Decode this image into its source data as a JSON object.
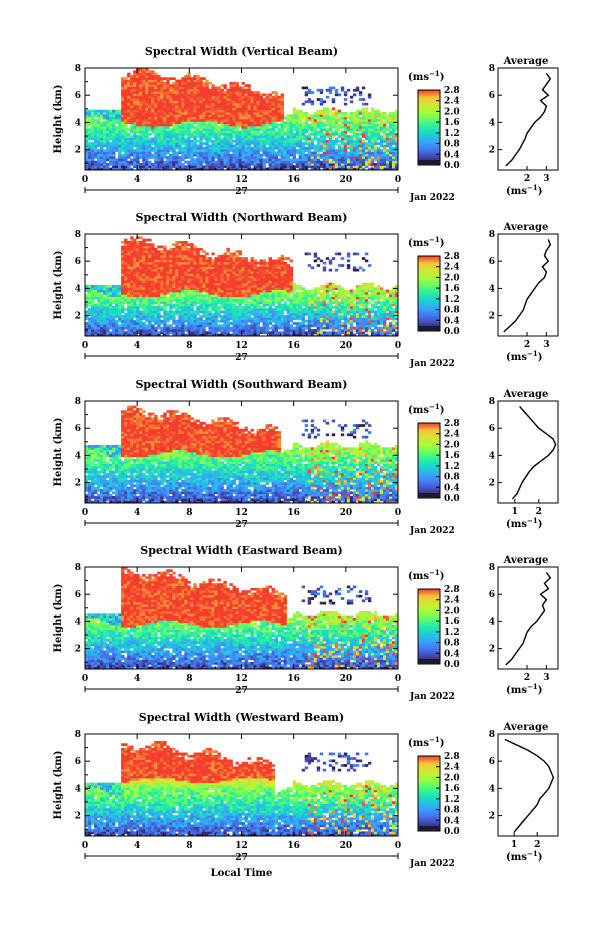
{
  "chart_data": {
    "type": "heatmap",
    "panels": [
      {
        "title": "Spectral Width (Vertical Beam)",
        "ylabel": "Height (km)",
        "ylim": [
          0.5,
          8
        ],
        "yticks": [
          2,
          4,
          6,
          8
        ],
        "xlim": [
          0,
          24
        ],
        "xticks": [
          "0",
          "4",
          "8",
          "12",
          "16",
          "20",
          "0"
        ],
        "day_label": "27",
        "date_label": "Jan 2022",
        "colorbar": {
          "unit": "(ms",
          "unit_exp": "−1",
          "unit_close": ")",
          "ticks": [
            "0.0",
            "0.4",
            "0.8",
            "1.2",
            "1.6",
            "2.0",
            "2.4",
            "2.8"
          ]
        },
        "average": {
          "title": "Average",
          "xlabel": "(ms",
          "xlabel_exp": "−1",
          "xlabel_close": ")",
          "xticks": [
            "2",
            "3"
          ],
          "xlim": [
            0.5,
            3.6
          ],
          "yticks": [
            "2",
            "4",
            "6",
            "8"
          ]
        },
        "field": {
          "high_top": 7.8,
          "high_bottom": 3.9,
          "high_end": 15.2,
          "blue_top": 4.3,
          "red_bands": [
            4.8,
            5.3
          ]
        },
        "profile": {
          "heights": [
            0.8,
            1.2,
            1.6,
            2.0,
            2.4,
            2.8,
            3.2,
            3.6,
            4.0,
            4.4,
            4.8,
            5.2,
            5.6,
            6.0,
            6.4,
            6.8,
            7.2,
            7.6
          ],
          "values": [
            0.9,
            1.2,
            1.4,
            1.6,
            1.75,
            1.9,
            2.0,
            2.2,
            2.4,
            2.7,
            2.9,
            3.0,
            2.7,
            3.1,
            2.8,
            3.0,
            3.2,
            3.0
          ]
        }
      },
      {
        "title": "Spectral Width (Northward Beam)",
        "ylabel": "Height (km)",
        "ylim": [
          0.5,
          8
        ],
        "yticks": [
          2,
          4,
          6,
          8
        ],
        "xlim": [
          0,
          24
        ],
        "xticks": [
          "0",
          "4",
          "8",
          "12",
          "16",
          "20",
          "0"
        ],
        "day_label": "27",
        "date_label": "Jan 2022",
        "colorbar": {
          "unit": "(ms",
          "unit_exp": "−1",
          "unit_close": ")",
          "ticks": [
            "0.0",
            "0.4",
            "0.8",
            "1.2",
            "1.6",
            "2.0",
            "2.4",
            "2.8"
          ]
        },
        "average": {
          "title": "Average",
          "xlabel": "(ms",
          "xlabel_exp": "−1",
          "xlabel_close": ")",
          "xticks": [
            "2",
            "3"
          ],
          "xlim": [
            0.5,
            3.6
          ],
          "yticks": [
            "2",
            "4",
            "6",
            "8"
          ]
        },
        "field": {
          "high_top": 7.6,
          "high_bottom": 3.6,
          "high_end": 16.0,
          "blue_top": 3.6,
          "red_bands": [
            4.6,
            5.2
          ]
        },
        "profile": {
          "heights": [
            0.8,
            1.2,
            1.6,
            2.0,
            2.4,
            2.8,
            3.2,
            3.6,
            4.0,
            4.4,
            4.8,
            5.2,
            5.6,
            6.0,
            6.4,
            6.8,
            7.2,
            7.6
          ],
          "values": [
            0.8,
            1.1,
            1.4,
            1.6,
            1.8,
            1.9,
            2.0,
            2.2,
            2.4,
            2.6,
            2.9,
            3.0,
            2.8,
            3.1,
            2.9,
            3.0,
            3.2,
            3.1
          ]
        }
      },
      {
        "title": "Spectral Width (Southward Beam)",
        "ylabel": "Height (km)",
        "ylim": [
          0.5,
          8
        ],
        "yticks": [
          2,
          4,
          6,
          8
        ],
        "xlim": [
          0,
          24
        ],
        "xticks": [
          "0",
          "4",
          "8",
          "12",
          "16",
          "20",
          "0"
        ],
        "day_label": "27",
        "date_label": "Jan 2022",
        "colorbar": {
          "unit": "(ms",
          "unit_exp": "−1",
          "unit_close": ")",
          "ticks": [
            "0.0",
            "0.4",
            "0.8",
            "1.2",
            "1.6",
            "2.0",
            "2.4",
            "2.8"
          ]
        },
        "average": {
          "title": "Average",
          "xlabel": "(ms",
          "xlabel_exp": "−1",
          "xlabel_close": ")",
          "xticks": [
            "1",
            "2"
          ],
          "xlim": [
            0.3,
            2.8
          ],
          "yticks": [
            "2",
            "4",
            "6",
            "8"
          ]
        },
        "field": {
          "high_top": 7.4,
          "high_bottom": 4.1,
          "high_end": 15.0,
          "blue_top": 4.2,
          "red_bands": [
            4.9,
            5.4
          ]
        },
        "profile": {
          "heights": [
            0.8,
            1.2,
            1.6,
            2.0,
            2.4,
            2.8,
            3.2,
            3.6,
            4.0,
            4.4,
            4.8,
            5.2,
            5.6,
            6.0,
            6.4,
            6.8,
            7.2,
            7.6
          ],
          "values": [
            0.9,
            1.1,
            1.2,
            1.3,
            1.45,
            1.6,
            1.8,
            2.1,
            2.4,
            2.6,
            2.7,
            2.6,
            2.3,
            2.0,
            1.8,
            1.6,
            1.4,
            1.2
          ]
        }
      },
      {
        "title": "Spectral Width (Eastward Beam)",
        "ylabel": "Height (km)",
        "ylim": [
          0.5,
          8
        ],
        "yticks": [
          2,
          4,
          6,
          8
        ],
        "xlim": [
          0,
          24
        ],
        "xticks": [
          "0",
          "4",
          "8",
          "12",
          "16",
          "20",
          "0"
        ],
        "day_label": "27",
        "date_label": "Jan 2022",
        "colorbar": {
          "unit": "(ms",
          "unit_exp": "−1",
          "unit_close": ")",
          "ticks": [
            "0.0",
            "0.4",
            "0.8",
            "1.2",
            "1.6",
            "2.0",
            "2.4",
            "2.8"
          ]
        },
        "average": {
          "title": "Average",
          "xlabel": "(ms",
          "xlabel_exp": "−1",
          "xlabel_close": ")",
          "xticks": [
            "2",
            "3"
          ],
          "xlim": [
            0.5,
            3.6
          ],
          "yticks": [
            "2",
            "4",
            "6",
            "8"
          ]
        },
        "field": {
          "high_top": 7.7,
          "high_bottom": 3.8,
          "high_end": 15.4,
          "blue_top": 4.0,
          "red_bands": [
            4.7,
            5.3
          ]
        },
        "profile": {
          "heights": [
            0.8,
            1.2,
            1.6,
            2.0,
            2.4,
            2.8,
            3.2,
            3.6,
            4.0,
            4.4,
            4.8,
            5.2,
            5.6,
            6.0,
            6.4,
            6.8,
            7.2,
            7.6
          ],
          "values": [
            0.9,
            1.2,
            1.4,
            1.6,
            1.8,
            1.9,
            2.0,
            2.2,
            2.5,
            2.7,
            2.9,
            2.8,
            3.0,
            2.7,
            3.1,
            2.9,
            3.2,
            3.0
          ]
        }
      },
      {
        "title": "Spectral Width (Westward Beam)",
        "ylabel": "Height (km)",
        "ylim": [
          0.5,
          8
        ],
        "yticks": [
          2,
          4,
          6,
          8
        ],
        "xlim": [
          0,
          24
        ],
        "xticks": [
          "0",
          "4",
          "8",
          "12",
          "16",
          "20",
          "0"
        ],
        "day_label": "27",
        "date_label": "Jan 2022",
        "xlabel": "Local Time",
        "colorbar": {
          "unit": "(ms",
          "unit_exp": "−1",
          "unit_close": ")",
          "ticks": [
            "0.0",
            "0.4",
            "0.8",
            "1.2",
            "1.6",
            "2.0",
            "2.4",
            "2.8"
          ]
        },
        "average": {
          "title": "Average",
          "xlabel": "(ms",
          "xlabel_exp": "−1",
          "xlabel_close": ")",
          "xticks": [
            "1",
            "2"
          ],
          "xlim": [
            0.3,
            2.9
          ],
          "yticks": [
            "2",
            "4",
            "6",
            "8"
          ]
        },
        "field": {
          "high_top": 7.3,
          "high_bottom": 4.6,
          "high_end": 14.5,
          "blue_top": 3.8,
          "red_bands": [
            4.8,
            5.6
          ]
        },
        "profile": {
          "heights": [
            0.8,
            1.2,
            1.6,
            2.0,
            2.4,
            2.8,
            3.2,
            3.6,
            4.0,
            4.4,
            4.8,
            5.2,
            5.6,
            6.0,
            6.4,
            6.8,
            7.2,
            7.6
          ],
          "values": [
            1.0,
            1.2,
            1.4,
            1.6,
            1.8,
            2.0,
            2.1,
            2.3,
            2.5,
            2.6,
            2.7,
            2.6,
            2.5,
            2.3,
            2.0,
            1.6,
            1.1,
            0.6
          ]
        }
      }
    ]
  }
}
